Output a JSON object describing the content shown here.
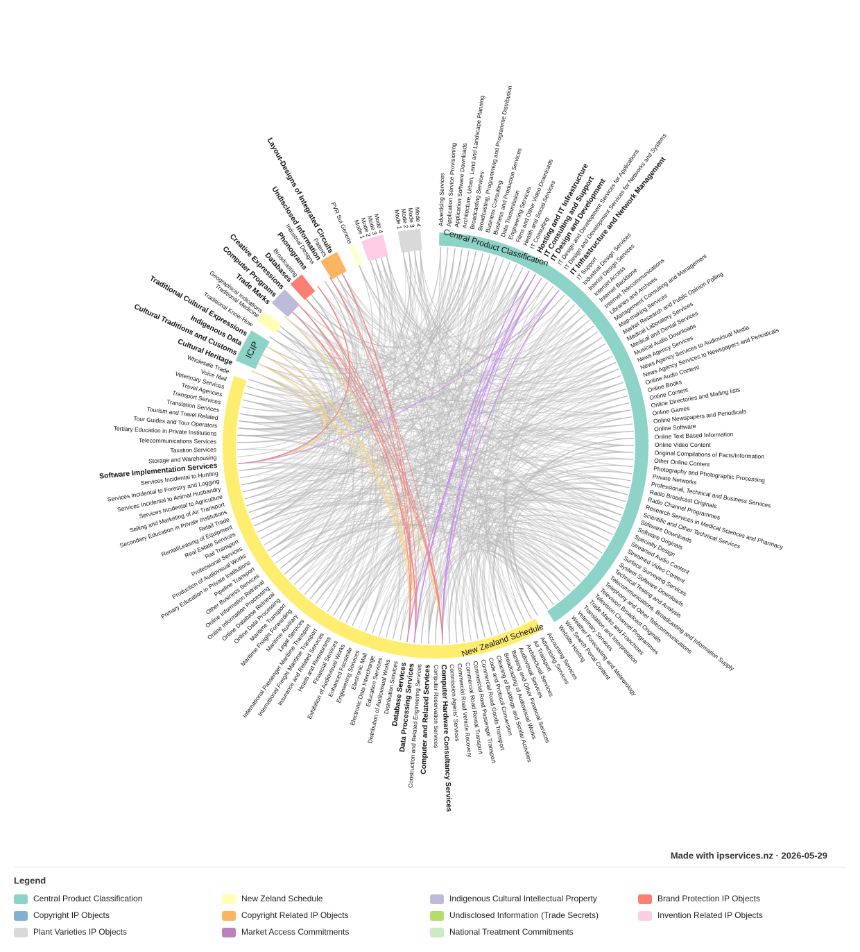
{
  "diagram": {
    "groups": [
      {
        "label": "Central Product Classification",
        "color": "#8dd3c7",
        "leaves": [
          "Advertising Services",
          "Application Service Provisioning",
          "Application Software Downloads",
          "Architecture, Urban, Land and Landscape Planning",
          "Broadcasting Services",
          "Broadcasting, Programming and Programme Distribution",
          "Business Consulting",
          "Business and Production Services",
          "Data Transmission",
          "Engineering Services",
          "Films and Other Video Downloads",
          "Health and Social Services",
          "IT Consulting",
          {
            "label": "Hosting and IT Infrastructure",
            "color": "#a020f0"
          },
          {
            "label": "IT Consulting and Support",
            "color": "#a020f0"
          },
          {
            "label": "IT Design and Development",
            "color": "#a020f0"
          },
          "IT Design and Development Services for Applications",
          "IT Design and Development Services for Networks and Systems",
          {
            "label": "IT Infrastructure and Network Management",
            "color": "#a020f0"
          },
          "IT Support",
          "Industrial Design Services",
          "Interior Design Services",
          "Internet Access",
          "Internet Backbone",
          "Internet Telecommunications",
          "Libraries and Archives",
          "Management Consulting and Management",
          "Map-making Services",
          "Market Research and Public Opinion Polling",
          "Medical Laboratory Services",
          "Medical and Dental Services",
          "Musical Audio Downloads",
          "News Agency Services",
          "News Agency Services to Audiovisual Media",
          "News Agency Services to Newspapers and Periodicals",
          "Online Audio Content",
          "Online Books",
          "Online Content",
          "Online Directories and Mailing lists",
          "Online Games",
          "Online Newspapers and Periodicals",
          "Online Software",
          "Online Text Based Information",
          "Online Video Content",
          "Original Compilations of Facts/Information",
          "Other Online Content",
          "Photography and Photographic Processing",
          "Private Networks",
          "Professional, Technical and Business Services",
          "Radio Broadcast Originals",
          "Radio Channel Programmes",
          "Research Services in Medical Sciences and Pharmacy",
          "Scientific and Other Technical Services",
          "Software Downloads",
          "Software Originals",
          "Specialty Design",
          "Streamed Audio Content",
          "Streamed Video Content",
          "Surface Surveying Services",
          "System Software Downloads",
          "Technical Testing and Analysis",
          "Telecommunications, Broadcasting and Information Supply",
          "Telephony and Other Telecommunications",
          "Television Broadcast Originals",
          "Television Channel Programmes",
          "Trade Marks and Franchises",
          "Translation and Interpretation",
          "Veterinary Services",
          "Weather Forecasting and Meteorology",
          "Web Search Portal Content",
          "Website Hosting"
        ]
      },
      {
        "label": "New Zealand Schedule",
        "color": "#ffed6f",
        "leaves": [
          "Accounting Services",
          "Advertising Services",
          "Air Transport",
          "Architectural Services",
          "Audiovisual Services",
          "Banking and Other Financial Services",
          "Broadcasting of Audiovisual Works",
          "Cleaning of Buildings and Similar Activities",
          "Code and Protocol Conversion",
          "Commercial Road Goods Transport",
          "Commercial Road Passenger Transport",
          "Commercial Road Rental Transport",
          "Commercial Road Vehicle Recovery",
          "Commission Agents' Services",
          {
            "label": "Computer Hardware Consultancy Services",
            "color": "#a020f0"
          },
          "Computer Reservation Services",
          {
            "label": "Computer and Related Services",
            "color": "#000000"
          },
          "Construction and Related Engineering Services",
          {
            "label": "Data Processing Services",
            "color": "#a020f0"
          },
          {
            "label": "Database Services",
            "color": "#a020f0"
          },
          "Distribution Services",
          "Distribution of Audiovisual Works",
          "Education Services",
          "Electronic Data Interchange",
          "Electronic Mail",
          "Engineering Services",
          "Enhanced Facsimile",
          "Exhibition of Audiovisual Works",
          "Financial Services",
          "Hotels and Restaurants",
          "Insurance and Related Services",
          "International Freight Maritime Transport",
          "International Passenger Maritime Transport",
          "Legal Services",
          "Maritime Auxiliary",
          "Maritime Freight Forwarding",
          "Maritime Transport",
          "Online Data Processing",
          "Online Database Retrieval",
          "Online Information Processing",
          "Online Information Retrieval",
          "Other Business Services",
          "Pipeline Transport",
          "Primary Education in Private Institutions",
          "Production of Audiovisual Works",
          "Professional Services",
          "Rail Transport",
          "Real Estate Services",
          "Rental/Leasing of Equipment",
          "Retail Trade",
          "Secondary Education in Private Institutions",
          "Selling and Marketing of Air Transport",
          "Services Incidental to Agriculture",
          "Services Incidental to Animal Husbandry",
          "Services Incidental to Forestry and Logging",
          "Services Incidental to Hunting",
          {
            "label": "Software Implementation Services",
            "color": "#a020f0"
          },
          "Storage and Warehousing",
          "Taxation Services",
          "Telecommunications Services",
          "Tertiary Education in Private Institutions",
          "Tour Guides and Tour Operators",
          "Tourism and Travel Related",
          "Translation Services",
          "Transport Services",
          "Travel Agencies",
          "Veterinary Services",
          "Voice Mail",
          "Wholesale Trade"
        ]
      },
      {
        "label": "ICIP",
        "color": "#8dd3c7",
        "leaves": [
          {
            "label": "Cultural Heritage",
            "color": "#f5a623"
          },
          {
            "label": "Cultural Traditions and Customs",
            "color": "#f5a623"
          },
          {
            "label": "Indigenous Data",
            "color": "#f5a623"
          },
          {
            "label": "Traditional Cultural Expressions",
            "color": "#f5a623"
          },
          "Traditional Know-How",
          "Traditional Medicine"
        ]
      },
      {
        "color": "#ffffb3",
        "leaves": [
          "Geographical Indications",
          {
            "label": "Trade Marks",
            "color": "#f5a623"
          }
        ]
      },
      {
        "color": "#bebada",
        "leaves": [
          {
            "label": "Computer Programs",
            "color": "#e8141e"
          },
          {
            "label": "Creative Expressions",
            "color": "#e8141e"
          },
          {
            "label": "Databases",
            "color": "#e8141e"
          }
        ]
      },
      {
        "color": "#fb8072",
        "leaves": [
          "Broadcasting",
          {
            "label": "Phonograms",
            "color": "#e8141e"
          }
        ]
      },
      {
        "color": "#fdb462",
        "leaves": [
          "Industrial Designs",
          {
            "label": "Undisclosed Information",
            "color": "#e8141e"
          },
          "Patents",
          {
            "label": "Layout-Designs of Integrated Circuits",
            "color": "#e8141e"
          }
        ]
      },
      {
        "color": "#ffffcc",
        "leaves": [
          "PVR Sui Generis"
        ]
      },
      {
        "color": "#fccde5",
        "leaves": [
          "Mode 1",
          "Mode 2",
          "Mode 3",
          "Mode 4"
        ]
      },
      {
        "color": "#d9d9d9",
        "leaves": [
          "Mode 1",
          "Mode 2",
          "Mode 3",
          "Mode 4"
        ]
      }
    ],
    "footer": "Made with ipservices.nz · 2026-05-29",
    "legend": {
      "title": "Legend",
      "items": [
        {
          "label": "Central Product Classification",
          "color": "#8dd3c7"
        },
        {
          "label": "New Zeland Schedule",
          "color": "#ffffb3"
        },
        {
          "label": "Indigenous Cultural Intellectual Property",
          "color": "#bebada"
        },
        {
          "label": "Brand Protection IP Objects",
          "color": "#fb8072"
        },
        {
          "label": "Copyright IP Objects",
          "color": "#80b1d3"
        },
        {
          "label": "Copyright Related IP Objects",
          "color": "#fdb462"
        },
        {
          "label": "Undisclosed Information (Trade Secrets)",
          "color": "#b3de69"
        },
        {
          "label": "Invention Related IP Objects",
          "color": "#fccde5"
        },
        {
          "label": "Plant Varieties IP Objects",
          "color": "#d9d9d9"
        },
        {
          "label": "Market Access Commitments",
          "color": "#bc80bd"
        },
        {
          "label": "National Treatment Commitments",
          "color": "#ccebc5"
        }
      ]
    }
  }
}
